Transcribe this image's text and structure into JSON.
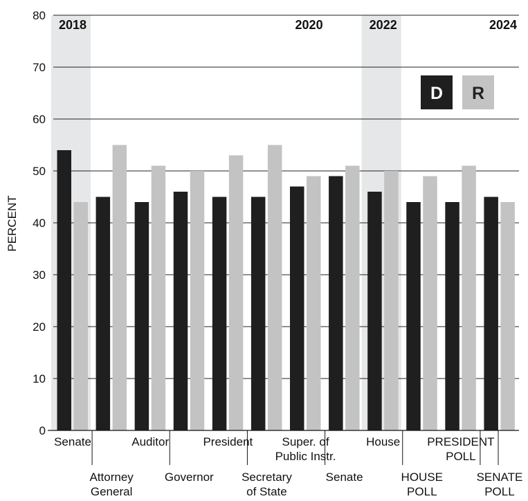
{
  "chart_data": {
    "type": "bar",
    "title": "",
    "xlabel": "",
    "ylabel": "PERCENT",
    "ylim": [
      0,
      80
    ],
    "yticks": [
      0,
      10,
      20,
      30,
      40,
      50,
      60,
      70,
      80
    ],
    "grid": true,
    "legend": {
      "position": "top-right",
      "entries": [
        "D",
        "R"
      ]
    },
    "colors": {
      "D": "#1f1f1f",
      "R": "#c3c3c3",
      "shade": "#e6e7e8",
      "grid": "#222222"
    },
    "categories": [
      "Senate",
      "Attorney General",
      "Auditor",
      "Governor",
      "President",
      "Secretary of State",
      "Super. of Public Instr.",
      "Senate",
      "House",
      "HOUSE POLL",
      "PRESIDENT POLL",
      "SENATE POLL"
    ],
    "category_label_lines": [
      [
        "Senate"
      ],
      [
        "Attorney",
        "General"
      ],
      [
        "Auditor"
      ],
      [
        "Governor"
      ],
      [
        "President"
      ],
      [
        "Secretary",
        "of State"
      ],
      [
        "Super. of",
        "Public Instr."
      ],
      [
        "Senate"
      ],
      [
        "House"
      ],
      [
        "HOUSE",
        "POLL"
      ],
      [
        "PRESIDENT",
        "POLL"
      ],
      [
        "SENATE",
        "POLL"
      ]
    ],
    "series": [
      {
        "name": "D",
        "values": [
          54,
          45,
          44,
          46,
          45,
          45,
          47,
          49,
          46,
          44,
          44,
          45
        ]
      },
      {
        "name": "R",
        "values": [
          44,
          55,
          51,
          50,
          53,
          55,
          49,
          51,
          50,
          49,
          51,
          44
        ]
      }
    ],
    "year_labels": [
      {
        "text": "2018",
        "category": 0,
        "shaded": true
      },
      {
        "text": "2020",
        "category": 7,
        "shaded": false
      },
      {
        "text": "2022",
        "category": 8,
        "shaded": true
      },
      {
        "text": "2024",
        "category": 11,
        "shaded": false
      }
    ]
  }
}
